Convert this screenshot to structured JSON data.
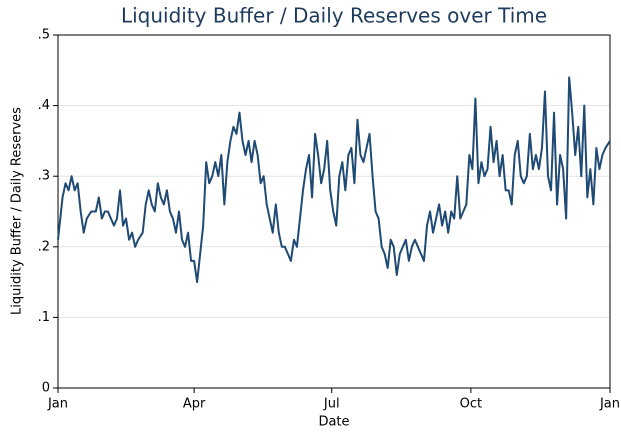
{
  "chart_data": {
    "type": "line",
    "title": "Liquidity Buffer / Daily Reserves over Time",
    "x_label": "Date",
    "y_label": "Liquidity Buffer / Daily Reserves",
    "x": [
      0,
      3,
      5,
      7,
      9,
      11,
      13,
      15,
      17,
      19,
      22,
      25,
      27,
      29,
      31,
      33,
      35,
      37,
      39,
      41,
      43,
      45,
      47,
      49,
      51,
      53,
      56,
      58,
      60,
      62,
      64,
      66,
      68,
      70,
      72,
      74,
      76,
      78,
      80,
      82,
      84,
      86,
      88,
      90,
      92,
      94,
      96,
      98,
      100,
      102,
      104,
      106,
      108,
      110,
      112,
      114,
      116,
      118,
      120,
      122,
      124,
      126,
      128,
      130,
      132,
      134,
      136,
      138,
      140,
      142,
      144,
      146,
      148,
      150,
      152,
      154,
      156,
      158,
      160,
      162,
      164,
      166,
      168,
      170,
      172,
      174,
      176,
      178,
      180,
      182,
      184,
      186,
      188,
      190,
      192,
      194,
      196,
      198,
      200,
      202,
      204,
      206,
      208,
      210,
      212,
      214,
      216,
      218,
      220,
      222,
      224,
      226,
      228,
      230,
      232,
      234,
      236,
      238,
      240,
      242,
      244,
      246,
      248,
      250,
      252,
      254,
      256,
      258,
      260,
      262,
      264,
      266,
      268,
      270,
      272,
      274,
      276,
      278,
      280,
      282,
      284,
      286,
      288,
      290,
      292,
      294,
      296,
      298,
      300,
      302,
      304,
      306,
      308,
      310,
      312,
      314,
      316,
      318,
      320,
      322,
      324,
      326,
      328,
      330,
      332,
      334,
      336,
      338,
      340,
      342,
      344,
      346,
      348,
      350,
      352,
      354,
      356,
      358,
      360,
      362,
      365
    ],
    "values": [
      0.21,
      0.27,
      0.29,
      0.28,
      0.3,
      0.28,
      0.29,
      0.25,
      0.22,
      0.24,
      0.25,
      0.25,
      0.27,
      0.24,
      0.25,
      0.25,
      0.24,
      0.23,
      0.24,
      0.28,
      0.23,
      0.24,
      0.21,
      0.22,
      0.2,
      0.21,
      0.22,
      0.26,
      0.28,
      0.26,
      0.25,
      0.29,
      0.27,
      0.26,
      0.28,
      0.25,
      0.24,
      0.22,
      0.25,
      0.21,
      0.2,
      0.22,
      0.18,
      0.18,
      0.15,
      0.19,
      0.23,
      0.32,
      0.29,
      0.3,
      0.32,
      0.3,
      0.33,
      0.26,
      0.32,
      0.35,
      0.37,
      0.36,
      0.39,
      0.35,
      0.33,
      0.35,
      0.32,
      0.35,
      0.33,
      0.29,
      0.3,
      0.26,
      0.24,
      0.22,
      0.26,
      0.22,
      0.2,
      0.2,
      0.19,
      0.18,
      0.21,
      0.2,
      0.24,
      0.28,
      0.31,
      0.33,
      0.27,
      0.36,
      0.33,
      0.29,
      0.31,
      0.35,
      0.28,
      0.25,
      0.23,
      0.3,
      0.32,
      0.28,
      0.33,
      0.34,
      0.29,
      0.38,
      0.33,
      0.32,
      0.34,
      0.36,
      0.3,
      0.25,
      0.24,
      0.2,
      0.19,
      0.17,
      0.21,
      0.2,
      0.16,
      0.19,
      0.2,
      0.21,
      0.18,
      0.2,
      0.21,
      0.2,
      0.19,
      0.18,
      0.23,
      0.25,
      0.22,
      0.24,
      0.26,
      0.23,
      0.25,
      0.22,
      0.25,
      0.24,
      0.3,
      0.24,
      0.25,
      0.26,
      0.33,
      0.31,
      0.41,
      0.29,
      0.32,
      0.3,
      0.31,
      0.37,
      0.32,
      0.35,
      0.3,
      0.33,
      0.28,
      0.28,
      0.26,
      0.33,
      0.35,
      0.3,
      0.29,
      0.3,
      0.36,
      0.31,
      0.33,
      0.31,
      0.34,
      0.42,
      0.3,
      0.28,
      0.39,
      0.26,
      0.33,
      0.31,
      0.24,
      0.44,
      0.39,
      0.33,
      0.37,
      0.3,
      0.4,
      0.27,
      0.31,
      0.26,
      0.34,
      0.31,
      0.33,
      0.34,
      0.35
    ],
    "color": "#1f4a73",
    "xlim": [
      0,
      365
    ],
    "xticks": [
      {
        "value": 0,
        "label": "Jan"
      },
      {
        "value": 90,
        "label": "Apr"
      },
      {
        "value": 181,
        "label": "Jul"
      },
      {
        "value": 273,
        "label": "Oct"
      },
      {
        "value": 365,
        "label": "Jan"
      }
    ],
    "ylim": [
      0,
      0.5
    ],
    "yticks": [
      0,
      {
        "value": 0.1,
        "label": ".1"
      },
      {
        "value": 0.2,
        "label": ".2"
      },
      {
        "value": 0.3,
        "label": ".3"
      },
      {
        "value": 0.4,
        "label": ".4"
      },
      {
        "value": 0.5,
        "label": ".5"
      }
    ],
    "grid": true
  }
}
